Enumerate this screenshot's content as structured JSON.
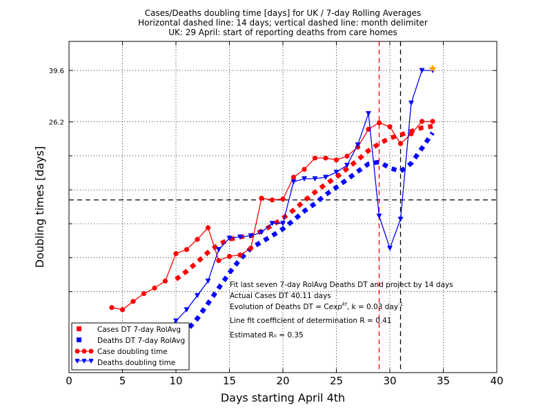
{
  "chart_data": {
    "type": "line",
    "title_lines": [
      "Cases/Deaths doubling time [days] for UK / 7-day Rolling Averages",
      "Horizontal dashed line: 14 days; vertical dashed line: month delimiter",
      "UK: 29 April: start of reporting deaths from care homes"
    ],
    "xlabel": "Days starting April 4th",
    "ylabel": "Doubling times [days]",
    "xlim": [
      0,
      40
    ],
    "ylim": [
      3.5,
      50
    ],
    "yscale": "log",
    "xticks": [
      0,
      5,
      10,
      15,
      20,
      25,
      30,
      35,
      40
    ],
    "yticks": [
      39.6,
      26.2
    ],
    "grid": true,
    "horizontal_line": 14,
    "vertical_lines": [
      {
        "x": 29,
        "color": "#ff0000"
      },
      {
        "x": 31,
        "color": "#000000"
      }
    ],
    "star_point": {
      "x": 34,
      "y": 40.2,
      "color": "#ffa500"
    },
    "series": [
      {
        "name": "Cases DT 7-day RolAvg",
        "color": "#ff0000",
        "style": "dotted-thick",
        "x": [
          10,
          11,
          12,
          13,
          14,
          15,
          16,
          17,
          18,
          19,
          20,
          21,
          22,
          23,
          24,
          25,
          26,
          27,
          28,
          29,
          30,
          31,
          32,
          33,
          34
        ],
        "y": [
          7.4,
          7.9,
          8.5,
          9.2,
          9.8,
          10.2,
          10.4,
          10.5,
          10.9,
          11.4,
          12.1,
          12.9,
          13.9,
          14.9,
          15.9,
          16.8,
          18.0,
          19.3,
          20.8,
          22.0,
          23.0,
          23.6,
          24.3,
          25.0,
          25.3
        ]
      },
      {
        "name": "Deaths DT 7-day RolAvg",
        "color": "#0000ff",
        "style": "dotted-thick",
        "x": [
          10,
          11,
          12,
          13,
          14,
          15,
          16,
          17,
          18,
          19,
          20,
          21,
          22,
          23,
          24,
          25,
          26,
          27,
          28,
          29,
          30,
          31,
          32,
          33,
          34
        ],
        "y": [
          4.5,
          4.9,
          5.4,
          6.1,
          6.9,
          7.8,
          8.7,
          9.5,
          10.0,
          10.5,
          11.1,
          11.9,
          12.8,
          13.6,
          14.6,
          15.5,
          16.5,
          17.6,
          18.7,
          19.0,
          18.1,
          17.6,
          18.8,
          21.2,
          24.0
        ]
      },
      {
        "name": "Case doubling time",
        "color": "#ff0000",
        "style": "line-circle",
        "x": [
          4,
          5,
          6,
          7,
          8,
          9,
          10,
          11,
          12,
          13,
          14,
          15,
          16,
          17,
          18,
          19,
          20,
          21,
          22,
          23,
          24,
          25,
          26,
          27,
          28,
          29,
          30,
          31,
          32,
          33,
          34
        ],
        "y": [
          5.9,
          5.8,
          6.2,
          6.6,
          6.9,
          7.3,
          9.1,
          9.4,
          10.2,
          11.2,
          8.6,
          8.9,
          9.0,
          9.5,
          14.2,
          14.0,
          14.1,
          16.8,
          17.9,
          19.6,
          19.6,
          19.3,
          19.9,
          21.4,
          24.7,
          26.0,
          25.2,
          22.0,
          23.8,
          26.3,
          26.3
        ]
      },
      {
        "name": "Deaths doubling time",
        "color": "#0000ff",
        "style": "line-triangle",
        "x": [
          4,
          5,
          6,
          7,
          8,
          9,
          10,
          11,
          12,
          13,
          14,
          15,
          16,
          17,
          18,
          19,
          20,
          21,
          22,
          23,
          24,
          25,
          26,
          27,
          28,
          29,
          30,
          31,
          32,
          33,
          34
        ],
        "y": [
          4.0,
          4.0,
          4.3,
          4.5,
          4.7,
          4.8,
          5.3,
          5.8,
          6.5,
          7.3,
          9.4,
          10.3,
          10.4,
          10.5,
          10.8,
          11.6,
          11.6,
          16.2,
          16.6,
          16.6,
          16.8,
          17.5,
          18.5,
          21.8,
          28.0,
          12.3,
          9.5,
          12.0,
          30.5,
          39.6,
          39.6
        ]
      }
    ],
    "annotations": [
      "Fit last seven 7-day RolAvg Deaths DT and project by 14 days",
      "Actual Cases DT 40.11 days",
      "Line fit coefficient of determination R = 0.41",
      "Estimated R₀ = 0.35"
    ],
    "annotation_evolution": {
      "prefix": "Evolution of Deaths DT = C",
      "exp": "exp",
      "sup": "kt",
      "mid": ", k = 0.03 day",
      "sup2": "-1"
    },
    "legend": {
      "position": "lower-left",
      "entries": [
        "Cases DT 7-day RolAvg",
        "Deaths DT 7-day RolAvg",
        "Case doubling time",
        "Deaths doubling time"
      ]
    }
  }
}
